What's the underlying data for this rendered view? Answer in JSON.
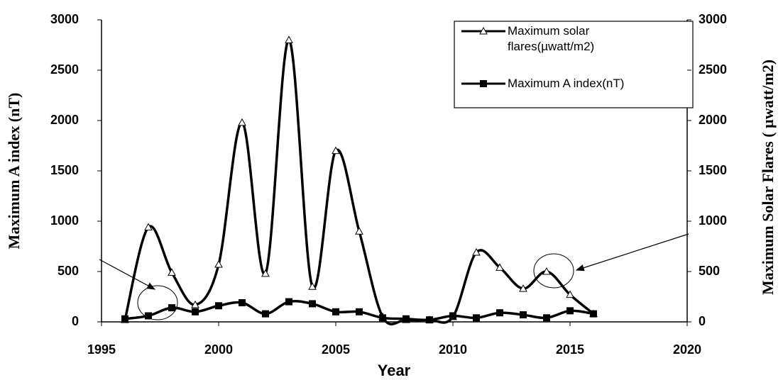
{
  "chart_data": {
    "type": "line",
    "x_label": "Year",
    "y_label": "Maximum  A index (nT)",
    "y2_label": "Maximum Solar Flares ( µwatt/m2)",
    "x": [
      1996,
      1997,
      1998,
      1999,
      2000,
      2001,
      2002,
      2003,
      2004,
      2005,
      2006,
      2007,
      2008,
      2009,
      2010,
      2011,
      2012,
      2013,
      2014,
      2015,
      2016
    ],
    "series": [
      {
        "name": "Maximum solar flares(µwatt/m2)",
        "color": "#000000",
        "marker": "triangle",
        "axis": "y2",
        "values": [
          20,
          940,
          490,
          170,
          570,
          1980,
          480,
          2800,
          350,
          1700,
          900,
          50,
          20,
          20,
          50,
          690,
          540,
          330,
          500,
          270,
          80
        ]
      },
      {
        "name": "Maximum A index(nT)",
        "color": "#000000",
        "marker": "square",
        "values": [
          30,
          60,
          140,
          100,
          160,
          190,
          80,
          200,
          180,
          100,
          100,
          40,
          30,
          20,
          60,
          40,
          90,
          70,
          40,
          110,
          80
        ]
      }
    ],
    "xlim": [
      1995,
      2020
    ],
    "xticks": [
      1995,
      2000,
      2005,
      2010,
      2015,
      2020
    ],
    "ylim": [
      0,
      3000
    ],
    "yticks": [
      0,
      500,
      1000,
      1500,
      2000,
      2500,
      3000
    ],
    "y2lim": [
      0,
      3000
    ],
    "y2ticks": [
      0,
      500,
      1000,
      1500,
      2000,
      2500,
      3000
    ],
    "smooth": true
  }
}
